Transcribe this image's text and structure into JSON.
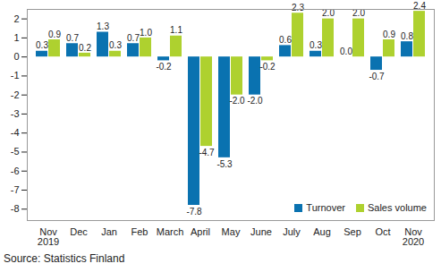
{
  "chart_data": {
    "type": "bar",
    "categories": [
      "Nov\n2019",
      "Dec",
      "Jan",
      "Feb",
      "March",
      "April",
      "May",
      "June",
      "July",
      "Aug",
      "Sep",
      "Oct",
      "Nov\n2020"
    ],
    "series": [
      {
        "name": "Turnover",
        "color": "#0a72b0",
        "values": [
          0.3,
          0.7,
          1.3,
          0.7,
          -0.2,
          -7.8,
          -5.3,
          -2.0,
          0.6,
          0.3,
          0.0,
          -0.7,
          0.8
        ],
        "value_labels": [
          "0.3",
          "0.7",
          "1.3",
          "0.7",
          "-0.2",
          "-7.8",
          "-5.3",
          "-2.0",
          "0.6",
          "0.3",
          "0.0",
          "-0.7",
          "0.8"
        ]
      },
      {
        "name": "Sales volume",
        "color": "#aed12f",
        "values": [
          0.9,
          0.2,
          0.3,
          1.0,
          1.1,
          -4.7,
          -2.0,
          -0.2,
          2.3,
          2.0,
          2.0,
          0.9,
          2.4
        ],
        "value_labels": [
          "0.9",
          "0.2",
          "0.3",
          "1.0",
          "1.1",
          "-4.7",
          "-2.0",
          "-0.2",
          "2.3",
          "2.0",
          "2.0",
          "0.9",
          "2.4"
        ]
      }
    ],
    "ylim": [
      -8.6,
      2.5
    ],
    "yticks": [
      -8,
      -7,
      -6,
      -5,
      -4,
      -3,
      -2,
      -1,
      0,
      1,
      2
    ],
    "grid": false,
    "data_labels": true,
    "legend": "lower right",
    "caption": "Source: Statistics Finland"
  }
}
